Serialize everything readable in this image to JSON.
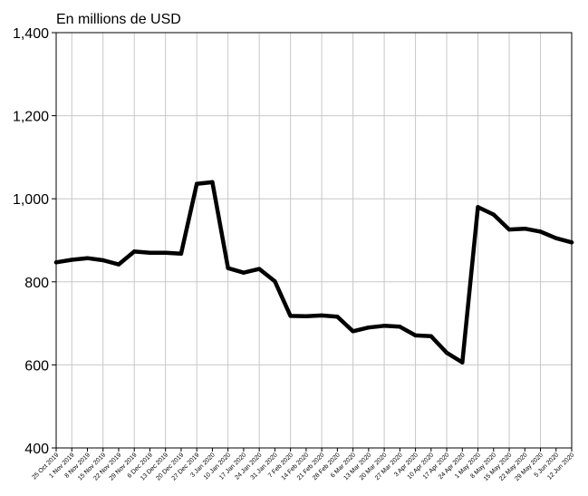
{
  "chart_data": {
    "type": "line",
    "ylabel": "En millions de USD",
    "ylim": [
      400,
      1400
    ],
    "yticks": [
      400,
      600,
      800,
      1000,
      1200,
      1400
    ],
    "ytick_labels": [
      "400",
      "600",
      "800",
      "1,000",
      "1,200",
      "1,400"
    ],
    "grid": true,
    "line_color": "#000000",
    "x": [
      "25 Oct 2019",
      "1 Nov 2019",
      "8 Nov 2019",
      "15 Nov 2019",
      "22 Nov 2019",
      "29 Nov 2019",
      "6 Dec 2019",
      "13 Dec 2019",
      "20 Dec 2019",
      "27 Dec 2019",
      "3 Jan 2020",
      "10 Jan 2020",
      "17 Jan 2020",
      "24 Jan 2020",
      "31 Jan 2020",
      "7 Feb 2020",
      "14 Feb 2020",
      "21 Feb 2020",
      "28 Feb 2020",
      "6 Mar 2020",
      "13 Mar 2020",
      "20 Mar 2020",
      "27 Mar 2020",
      "3 Apr 2020",
      "10 Apr 2020",
      "17 Apr 2020",
      "24 Apr 2020",
      "1 May 2020",
      "8 May 2020",
      "15 May 2020",
      "22 May 2020",
      "29 May 2020",
      "5 Jun 2020",
      "12 Jun 2020"
    ],
    "series": [
      {
        "values": [
          847,
          853,
          857,
          852,
          842,
          873,
          870,
          870,
          868,
          1036,
          1040,
          833,
          822,
          831,
          801,
          718,
          717,
          719,
          716,
          681,
          690,
          694,
          692,
          671,
          669,
          629,
          606,
          980,
          962,
          926,
          928,
          921,
          905,
          895
        ]
      }
    ]
  }
}
